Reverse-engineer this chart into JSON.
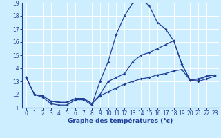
{
  "xlabel": "Graphe des températures (°c)",
  "x": [
    0,
    1,
    2,
    3,
    4,
    5,
    6,
    7,
    8,
    9,
    10,
    11,
    12,
    13,
    14,
    15,
    16,
    17,
    18,
    19,
    20,
    21,
    22,
    23
  ],
  "line1": [
    13.3,
    12.0,
    11.8,
    11.3,
    11.2,
    11.2,
    11.6,
    11.6,
    11.2,
    13.0,
    14.5,
    16.6,
    18.0,
    19.0,
    19.2,
    18.8,
    17.5,
    17.0,
    16.1,
    14.3,
    13.1,
    13.2,
    13.4,
    13.5
  ],
  "line2": [
    13.3,
    12.0,
    11.9,
    11.5,
    11.4,
    11.4,
    11.7,
    11.7,
    11.3,
    12.0,
    13.0,
    13.3,
    13.6,
    14.5,
    15.0,
    15.2,
    15.5,
    15.8,
    16.1,
    14.3,
    13.1,
    13.1,
    13.4,
    13.5
  ],
  "line3": [
    13.3,
    12.0,
    11.9,
    11.5,
    11.4,
    11.4,
    11.7,
    11.7,
    11.3,
    11.9,
    12.2,
    12.5,
    12.8,
    13.0,
    13.2,
    13.3,
    13.5,
    13.6,
    13.8,
    13.9,
    13.1,
    13.0,
    13.2,
    13.4
  ],
  "line_color": "#1f3e99",
  "bg_color": "#cceeff",
  "grid_color": "#ffffff",
  "ylim": [
    11,
    19
  ],
  "xlim": [
    -0.5,
    23.5
  ],
  "yticks": [
    11,
    12,
    13,
    14,
    15,
    16,
    17,
    18,
    19
  ],
  "xticks": [
    0,
    1,
    2,
    3,
    4,
    5,
    6,
    7,
    8,
    9,
    10,
    11,
    12,
    13,
    14,
    15,
    16,
    17,
    18,
    19,
    20,
    21,
    22,
    23
  ],
  "tick_fontsize": 5.5,
  "xlabel_fontsize": 6.5
}
